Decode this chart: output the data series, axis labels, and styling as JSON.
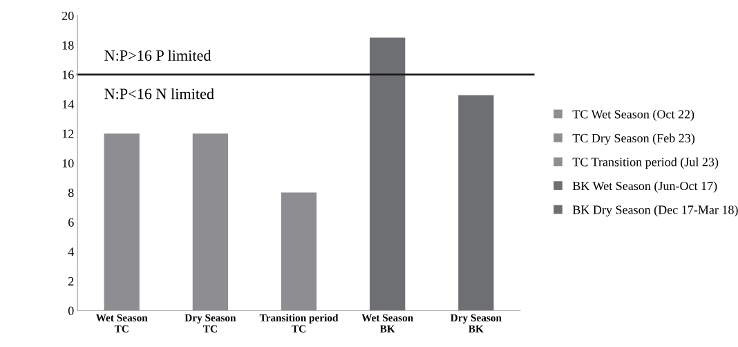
{
  "chart_data": {
    "type": "bar",
    "categories": [
      "Wet Season\nTC",
      "Dry Season\nTC",
      "Transition period\nTC",
      "Wet Season\nBK",
      "Dry Season\nBK"
    ],
    "series": [
      {
        "name": "TC Wet Season (Oct 22)",
        "color": "#8e8e92",
        "values": [
          12,
          null,
          null,
          null,
          null
        ]
      },
      {
        "name": "TC Dry Season (Feb 23)",
        "color": "#8e8e92",
        "values": [
          null,
          12,
          null,
          null,
          null
        ]
      },
      {
        "name": "TC Transition period (Jul 23)",
        "color": "#8e8e92",
        "values": [
          null,
          null,
          8,
          null,
          null
        ]
      },
      {
        "name": "BK Wet Season (Jun-Oct 17)",
        "color": "#6e6f73",
        "values": [
          null,
          null,
          null,
          18.5,
          null
        ]
      },
      {
        "name": "BK Dry Season (Dec 17-Mar 18)",
        "color": "#6e6f73",
        "values": [
          null,
          null,
          null,
          null,
          14.6
        ]
      }
    ],
    "ylim": [
      0,
      20
    ],
    "yticks": [
      0,
      2,
      4,
      6,
      8,
      10,
      12,
      14,
      16,
      18,
      20
    ],
    "ref_lines": [
      {
        "axis": "y",
        "value": 16,
        "color": "#1a1a1a"
      }
    ],
    "annotations": [
      "N:P>16 P limited",
      "N:P<16 N limited"
    ],
    "grid": false,
    "legend": "right"
  }
}
